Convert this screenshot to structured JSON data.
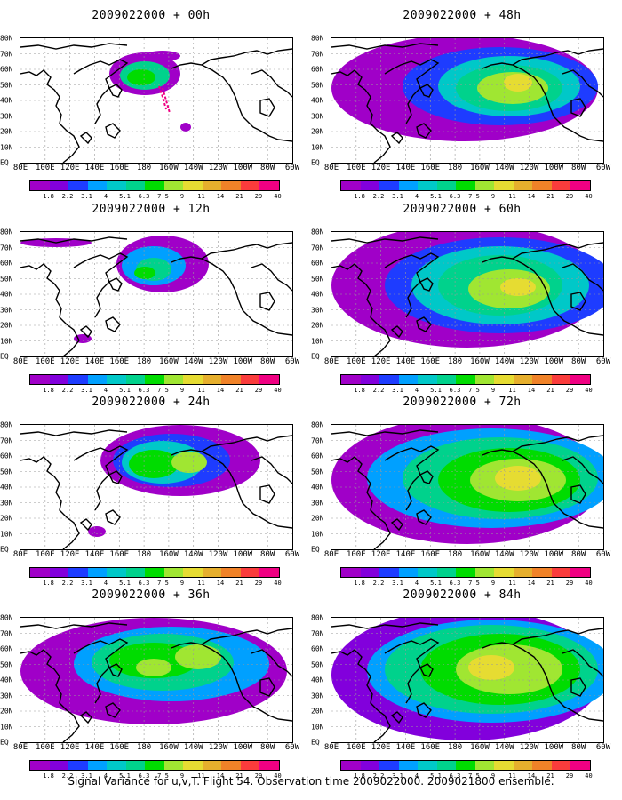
{
  "panels": [
    {
      "title": "2009022000 + 00h",
      "lead": "00h"
    },
    {
      "title": "2009022000 + 48h",
      "lead": "48h"
    },
    {
      "title": "2009022000 + 12h",
      "lead": "12h"
    },
    {
      "title": "2009022000 + 60h",
      "lead": "60h"
    },
    {
      "title": "2009022000 + 24h",
      "lead": "24h"
    },
    {
      "title": "2009022000 + 72h",
      "lead": "72h"
    },
    {
      "title": "2009022000 + 36h",
      "lead": "36h"
    },
    {
      "title": "2009022000 + 84h",
      "lead": "84h"
    }
  ],
  "map": {
    "x_labels": [
      "80E",
      "100E",
      "120E",
      "140E",
      "160E",
      "180",
      "160W",
      "140W",
      "120W",
      "100W",
      "80W",
      "60W"
    ],
    "y_labels": [
      "80N",
      "70N",
      "60N",
      "50N",
      "40N",
      "30N",
      "20N",
      "10N",
      "EQ"
    ],
    "projection": "lat-lon",
    "gridlines": true,
    "coastlines_color": "#000000"
  },
  "colorbar": {
    "labels": [
      "1.8",
      "2.2",
      "3.1",
      "4",
      "5.1",
      "6.3",
      "7.5",
      "9",
      "11",
      "14",
      "21",
      "29",
      "40"
    ],
    "colors": [
      "#a000c8",
      "#8200dc",
      "#1e3cff",
      "#00a0ff",
      "#00c8c8",
      "#00d28c",
      "#00dc00",
      "#a0e632",
      "#e6dc32",
      "#e6af2d",
      "#f08228",
      "#fa3c3c",
      "#f00082"
    ]
  },
  "footer": "Signal Variance for u,v,T. Flight 54. Observation time 2009022000. 2009021800 ensemble."
}
